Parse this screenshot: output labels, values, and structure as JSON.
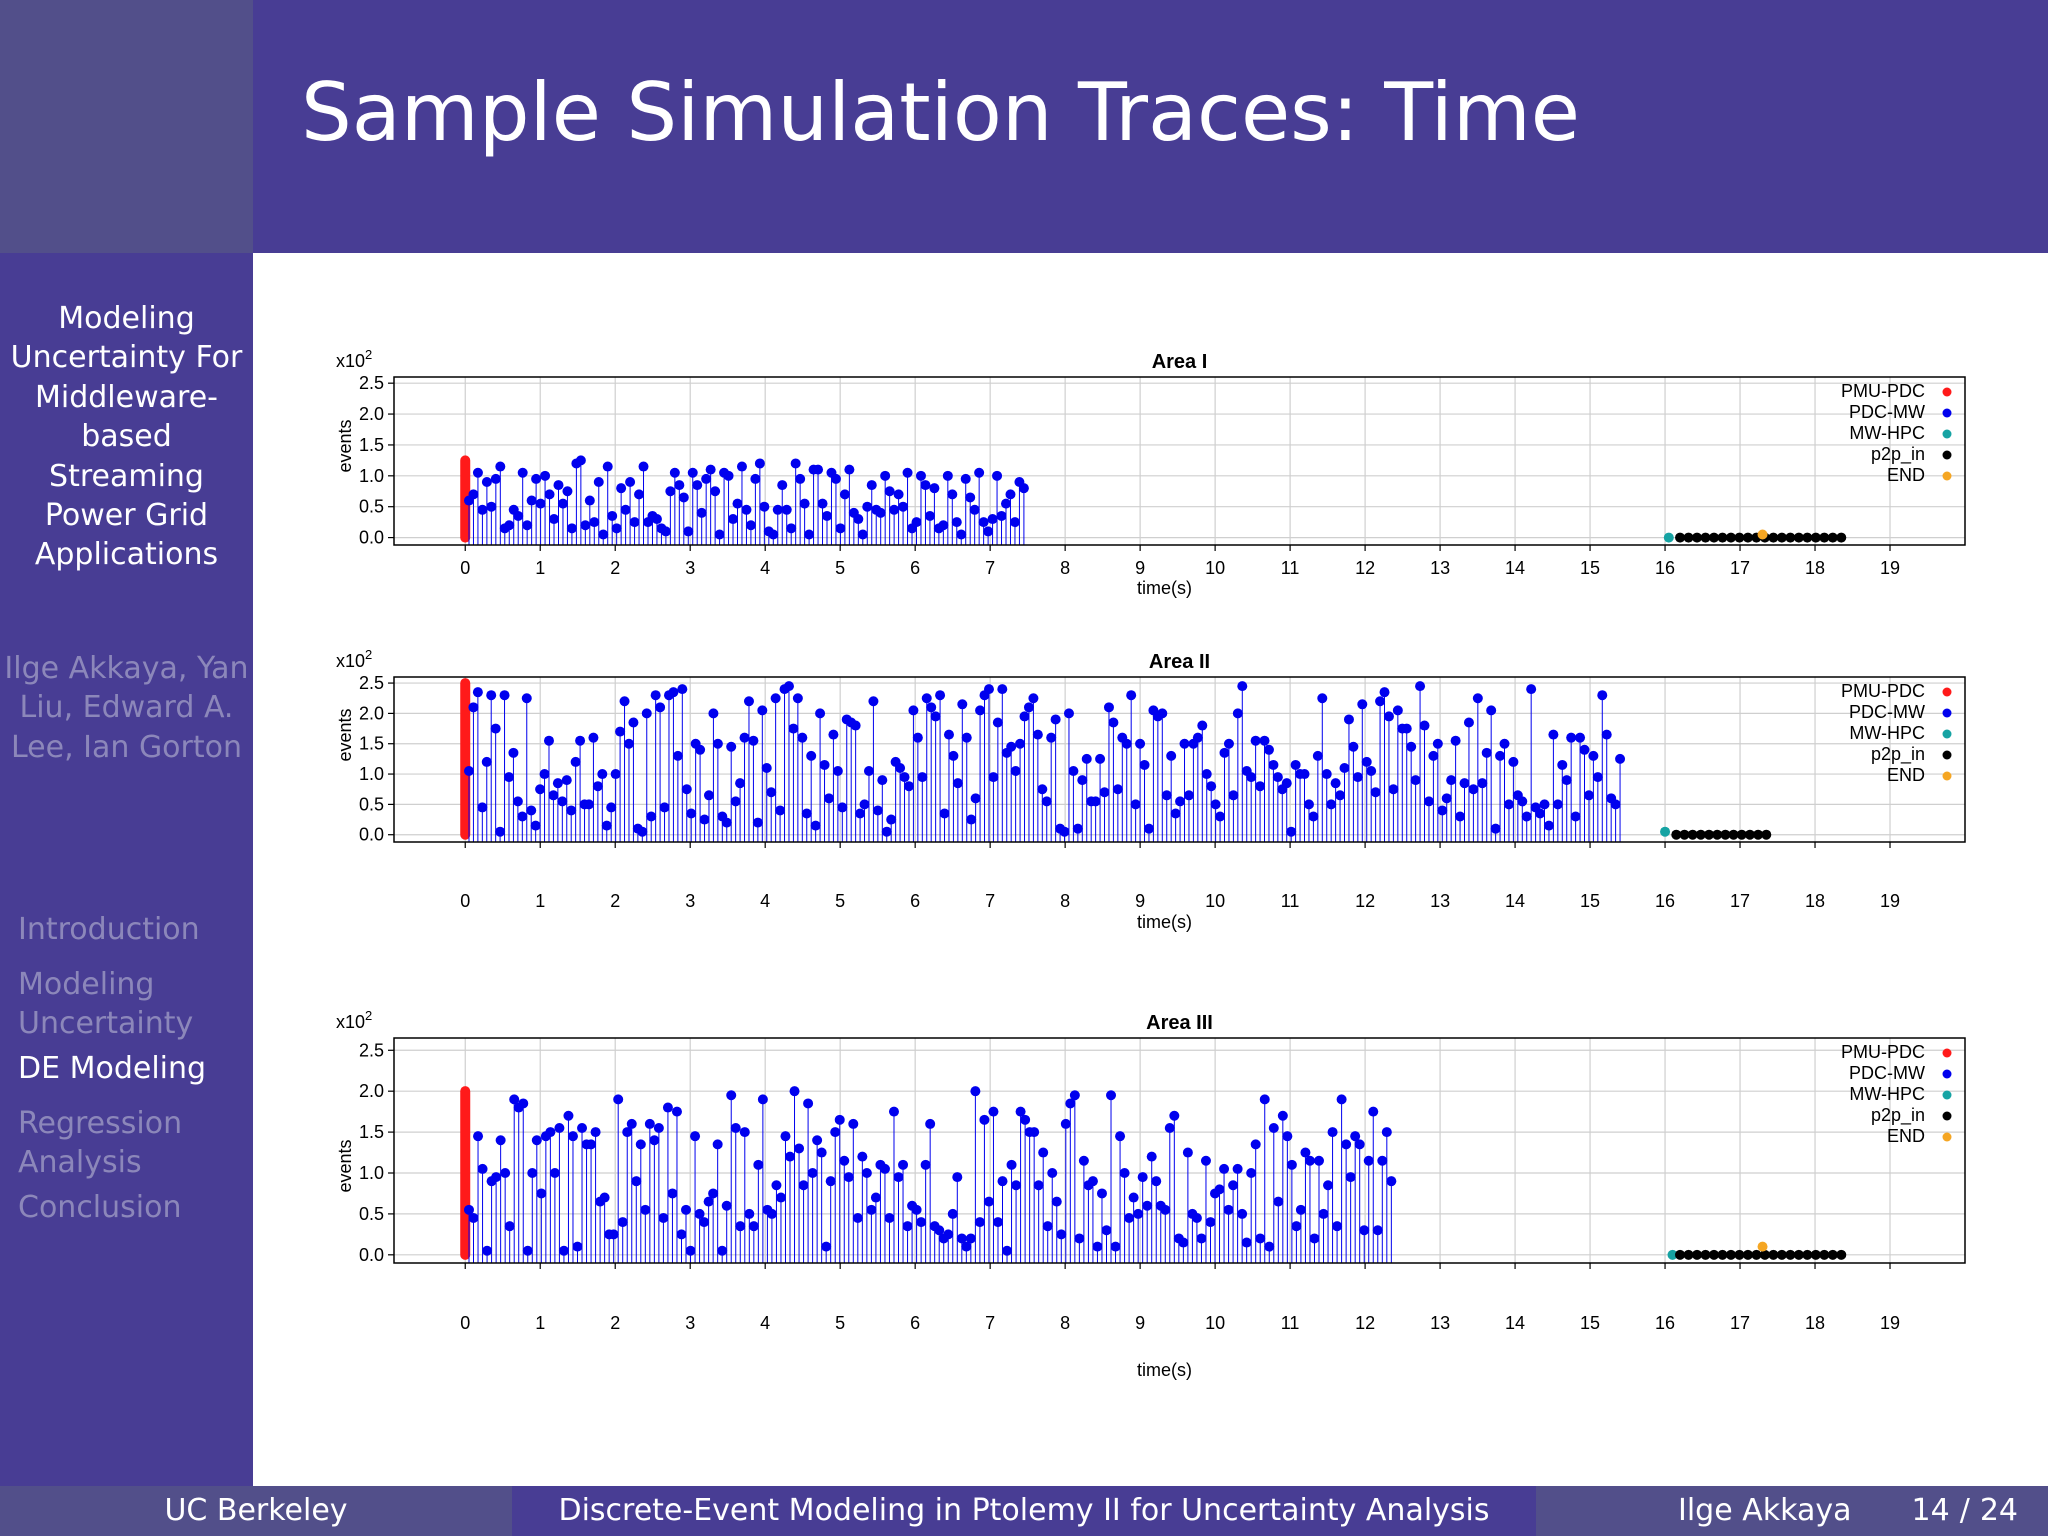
{
  "slide": {
    "title": "Sample Simulation Traces: Time"
  },
  "sidebar": {
    "talk_title": "Modeling Uncertainty For Middleware-based Streaming Power Grid Applications",
    "authors": "Ilge Akkaya, Yan Liu, Edward A. Lee, Ian Gorton",
    "nav": [
      {
        "label": "Introduction",
        "active": false
      },
      {
        "label": "Modeling Uncertainty",
        "active": false
      },
      {
        "label": "DE Modeling",
        "active": true
      },
      {
        "label": "Regression Analysis",
        "active": false
      },
      {
        "label": "Conclusion",
        "active": false
      }
    ]
  },
  "footer": {
    "institution": "UC Berkeley",
    "talk_title": "Discrete-Event Modeling in Ptolemy II for Uncertainty Analysis",
    "author": "Ilge Akkaya",
    "page_current": "14",
    "page_sep": "/",
    "page_total": "24"
  },
  "colors": {
    "header_bg": "#483d94",
    "sidebar_bg": "#483d94",
    "corner_bg": "#524f8a",
    "nav_inactive": "#8c87ba",
    "PMU-PDC": "#ff1a1a",
    "PDC-MW": "#0000ee",
    "MW-HPC": "#16a3a3",
    "p2p_in": "#000000",
    "END": "#f5a623"
  },
  "chart_data": [
    {
      "type": "scatter",
      "style": "stem",
      "title": "Area I",
      "xlabel": "time(s)",
      "ylabel": "events",
      "y_multiplier": "x10",
      "y_multiplier_exp": "2",
      "xlim": [
        -0.95,
        20
      ],
      "ylim": [
        -0.12,
        2.6
      ],
      "xticks": [
        "0",
        "1",
        "2",
        "3",
        "4",
        "5",
        "6",
        "7",
        "8",
        "9",
        "10",
        "11",
        "12",
        "13",
        "14",
        "15",
        "16",
        "17",
        "18",
        "19"
      ],
      "yticks": [
        "0.0",
        "0.5",
        "1.0",
        "1.5",
        "2.0",
        "2.5"
      ],
      "grid": true,
      "legend_position": "right",
      "legend": [
        "PMU-PDC",
        "PDC-MW",
        "MW-HPC",
        "p2p_in",
        "END"
      ],
      "series": [
        {
          "name": "PMU-PDC",
          "style": "bar",
          "x": [
            0,
            0
          ],
          "y": [
            0.0,
            1.25
          ]
        },
        {
          "name": "PDC-MW",
          "x_range": [
            0.05,
            7.45
          ],
          "count": 125,
          "y": [
            0.6,
            0.7,
            1.05,
            0.45,
            0.9,
            0.5,
            0.95,
            1.15,
            0.15,
            0.2,
            0.45,
            0.35,
            1.05,
            0.2,
            0.6,
            0.95,
            0.55,
            1.0,
            0.7,
            0.3,
            0.85,
            0.55,
            0.75,
            0.15,
            1.2,
            1.25,
            0.2,
            0.6,
            0.25,
            0.9,
            0.05,
            1.15,
            0.35,
            0.15,
            0.8,
            0.45,
            0.9,
            0.25,
            0.7,
            1.15,
            0.25,
            0.35,
            0.3,
            0.15,
            0.1,
            0.75,
            1.05,
            0.85,
            0.65,
            0.1,
            1.05,
            0.85,
            0.4,
            0.95,
            1.1,
            0.75,
            0.05,
            1.05,
            1.0,
            0.3,
            0.55,
            1.15,
            0.45,
            0.2,
            0.95,
            1.2,
            0.5,
            0.1,
            0.05,
            0.45,
            0.85,
            0.45,
            0.15,
            1.2,
            0.95,
            0.55,
            0.05,
            1.1,
            1.1,
            0.55,
            0.35,
            1.05,
            0.95,
            0.15,
            0.7,
            1.1,
            0.4,
            0.3,
            0.05,
            0.5,
            0.85,
            0.45,
            0.4,
            1.0,
            0.75,
            0.45,
            0.7,
            0.5,
            1.05,
            0.15,
            0.25,
            1.0,
            0.85,
            0.35,
            0.8,
            0.15,
            0.2,
            1.0,
            0.7,
            0.25,
            0.05,
            0.95,
            0.65,
            0.45,
            1.05,
            0.25,
            0.1,
            0.3,
            1.0,
            0.35,
            0.55,
            0.7,
            0.25,
            0.9,
            0.8
          ]
        },
        {
          "name": "MW-HPC",
          "x": [
            16.05
          ],
          "y": [
            0.0
          ]
        },
        {
          "name": "p2p_in",
          "x_range": [
            16.2,
            18.35
          ],
          "count": 20,
          "y": [
            0.0
          ]
        },
        {
          "name": "END",
          "x": [
            17.3
          ],
          "y": [
            0.05
          ]
        }
      ]
    },
    {
      "type": "scatter",
      "style": "stem",
      "title": "Area II",
      "xlabel": "time(s)",
      "ylabel": "events",
      "y_multiplier": "x10",
      "y_multiplier_exp": "2",
      "xlim": [
        -0.95,
        20
      ],
      "ylim": [
        -0.12,
        2.6
      ],
      "xticks": [
        "0",
        "1",
        "2",
        "3",
        "4",
        "5",
        "6",
        "7",
        "8",
        "9",
        "10",
        "11",
        "12",
        "13",
        "14",
        "15",
        "16",
        "17",
        "18",
        "19"
      ],
      "yticks": [
        "0.0",
        "0.5",
        "1.0",
        "1.5",
        "2.0",
        "2.5"
      ],
      "grid": true,
      "legend_position": "right",
      "legend": [
        "PMU-PDC",
        "PDC-MW",
        "MW-HPC",
        "p2p_in",
        "END"
      ],
      "series": [
        {
          "name": "PMU-PDC",
          "style": "bar",
          "x": [
            0,
            0
          ],
          "y": [
            0.0,
            2.5
          ]
        },
        {
          "name": "PDC-MW",
          "x_range": [
            0.05,
            15.4
          ],
          "count": 260,
          "y": [
            1.05,
            2.1,
            2.35,
            0.45,
            1.2,
            2.3,
            1.75,
            0.05,
            2.3,
            0.95,
            1.35,
            0.55,
            0.3,
            2.25,
            0.4,
            0.15,
            0.75,
            1.0,
            1.55,
            0.65,
            0.85,
            0.55,
            0.9,
            0.4,
            1.2,
            1.55,
            0.5,
            0.5,
            1.6,
            0.8,
            1.0,
            0.15,
            0.45,
            1.0,
            1.7,
            2.2,
            1.5,
            1.85,
            0.1,
            0.05,
            2.0,
            0.3,
            2.3,
            2.1,
            0.45,
            2.3,
            2.35,
            1.3,
            2.4,
            0.75,
            0.35,
            1.5,
            1.4,
            0.25,
            0.65,
            2.0,
            1.5,
            0.3,
            0.2,
            1.45,
            0.55,
            0.85,
            1.6,
            2.2,
            1.55,
            0.2,
            2.05,
            1.1,
            0.7,
            2.25,
            0.4,
            2.4,
            2.45,
            1.75,
            2.25,
            1.6,
            0.35,
            1.3,
            0.15,
            2.0,
            1.15,
            0.6,
            1.65,
            1.05,
            0.45,
            1.9,
            1.85,
            1.8,
            0.35,
            0.5,
            1.05,
            2.2,
            0.4,
            0.9,
            0.05,
            0.25,
            1.2,
            1.1,
            0.95,
            0.8,
            2.05,
            1.6,
            0.95,
            2.25,
            2.1,
            1.95,
            2.3,
            0.35,
            1.65,
            1.3,
            0.85,
            2.15,
            1.6,
            0.25,
            0.6,
            2.05,
            2.3,
            2.4,
            0.95,
            1.85,
            2.4,
            1.35,
            1.45,
            1.05,
            1.5,
            1.95,
            2.1,
            2.25,
            1.65,
            0.75,
            0.55,
            1.6,
            1.9,
            0.1,
            0.05,
            2.0,
            1.05,
            0.1,
            0.9,
            1.25,
            0.55,
            0.55,
            1.25,
            0.7,
            2.1,
            1.85,
            0.75,
            1.6,
            1.5,
            2.3,
            0.5,
            1.5,
            1.15,
            0.1,
            2.05,
            1.95,
            2.0,
            0.65,
            1.3,
            0.35,
            0.55,
            1.5,
            0.65,
            1.5,
            1.6,
            1.8,
            1.0,
            0.8,
            0.5,
            0.3,
            1.35,
            1.5,
            0.65,
            2.0,
            2.45,
            1.05,
            0.95,
            1.55,
            0.8,
            1.55,
            1.4,
            1.15,
            0.95,
            0.75,
            0.85,
            0.05,
            1.15,
            1.0,
            1.0,
            0.5,
            0.3,
            1.3,
            2.25,
            1.0,
            0.5,
            0.85,
            0.65,
            1.1,
            1.9,
            1.45,
            0.95,
            2.15,
            1.2,
            1.05,
            0.7,
            2.2,
            2.35,
            1.95,
            0.75,
            2.05,
            1.75,
            1.75,
            1.45,
            0.9,
            2.45,
            1.8,
            0.55,
            1.3,
            1.5,
            0.4,
            0.6,
            0.9,
            1.55,
            0.3,
            0.85,
            1.85,
            0.75,
            2.25,
            0.85,
            1.35,
            2.05,
            0.1,
            1.3,
            1.5,
            0.5,
            1.2,
            0.65,
            0.55,
            0.3,
            2.4,
            0.45,
            0.35,
            0.5,
            0.15,
            1.65,
            0.5,
            1.15,
            0.9,
            1.6,
            0.3,
            1.6,
            1.4,
            0.65,
            1.3,
            0.95,
            2.3,
            1.65,
            0.6,
            0.5,
            1.25,
            0.95,
            1.95,
            1.65,
            0.85,
            1.35,
            0.65,
            1.05,
            1.55,
            1.3,
            0.95,
            1.85,
            0.3,
            0.7,
            1.6,
            1.0,
            0.85,
            1.9,
            1.05,
            0.55,
            0.65,
            0.8,
            2.1,
            1.5,
            1.3,
            1.1,
            0.85,
            0.45,
            1.35,
            0.9,
            0.65,
            2.35,
            1.2,
            0.15,
            0.6,
            1.35,
            0.05,
            1.25,
            1.6
          ]
        },
        {
          "name": "MW-HPC",
          "x": [
            16.0
          ],
          "y": [
            0.05
          ]
        },
        {
          "name": "p2p_in",
          "x_range": [
            16.15,
            17.35
          ],
          "count": 12,
          "y": [
            0.0
          ]
        }
      ]
    },
    {
      "type": "scatter",
      "style": "stem",
      "title": "Area III",
      "xlabel": "time(s)",
      "ylabel": "events",
      "y_multiplier": "x10",
      "y_multiplier_exp": "2",
      "xlim": [
        -0.95,
        20
      ],
      "ylim": [
        -0.1,
        2.65
      ],
      "xticks": [
        "0",
        "1",
        "2",
        "3",
        "4",
        "5",
        "6",
        "7",
        "8",
        "9",
        "10",
        "11",
        "12",
        "13",
        "14",
        "15",
        "16",
        "17",
        "18",
        "19"
      ],
      "yticks": [
        "0.0",
        "0.5",
        "1.0",
        "1.5",
        "2.0",
        "2.5"
      ],
      "grid": true,
      "legend_position": "right",
      "legend": [
        "PMU-PDC",
        "PDC-MW",
        "MW-HPC",
        "p2p_in",
        "END"
      ],
      "series": [
        {
          "name": "PMU-PDC",
          "style": "bar",
          "x": [
            0,
            0
          ],
          "y": [
            0.0,
            2.0
          ]
        },
        {
          "name": "PDC-MW",
          "x_range": [
            0.05,
            12.35
          ],
          "count": 205,
          "y": [
            0.55,
            0.45,
            1.45,
            1.05,
            0.05,
            0.9,
            0.95,
            1.4,
            1.0,
            0.35,
            1.9,
            1.8,
            1.85,
            0.05,
            1.0,
            1.4,
            0.75,
            1.45,
            1.5,
            1.0,
            1.55,
            0.05,
            1.7,
            1.45,
            0.1,
            1.55,
            1.35,
            1.35,
            1.5,
            0.65,
            0.7,
            0.25,
            0.25,
            1.9,
            0.4,
            1.5,
            1.6,
            0.9,
            1.35,
            0.55,
            1.6,
            1.4,
            1.55,
            0.45,
            1.8,
            0.75,
            1.75,
            0.25,
            0.55,
            0.05,
            1.45,
            0.5,
            0.4,
            0.65,
            0.75,
            1.35,
            0.05,
            0.6,
            1.95,
            1.55,
            0.35,
            1.5,
            0.5,
            0.35,
            1.1,
            1.9,
            0.55,
            0.5,
            0.85,
            0.7,
            1.45,
            1.2,
            2.0,
            1.3,
            0.85,
            1.85,
            1.0,
            1.4,
            1.25,
            0.1,
            0.9,
            1.5,
            1.65,
            1.15,
            0.95,
            1.6,
            0.45,
            1.2,
            1.0,
            0.55,
            0.7,
            1.1,
            1.05,
            0.45,
            1.75,
            0.95,
            1.1,
            0.35,
            0.6,
            0.55,
            0.4,
            1.1,
            1.6,
            0.35,
            0.3,
            0.2,
            0.25,
            0.5,
            0.95,
            0.2,
            0.1,
            0.2,
            2.0,
            0.4,
            1.65,
            0.65,
            1.75,
            0.4,
            0.9,
            0.05,
            1.1,
            0.85,
            1.75,
            1.65,
            1.5,
            1.5,
            0.85,
            1.25,
            0.35,
            1.0,
            0.65,
            0.25,
            1.6,
            1.85,
            1.95,
            0.2,
            1.15,
            0.85,
            0.9,
            0.1,
            0.75,
            0.3,
            1.95,
            0.1,
            1.45,
            1.0,
            0.45,
            0.7,
            0.5,
            0.95,
            0.6,
            1.2,
            0.9,
            0.6,
            0.55,
            1.55,
            1.7,
            0.2,
            0.15,
            1.25,
            0.5,
            0.45,
            0.2,
            1.15,
            0.4,
            0.75,
            0.8,
            1.05,
            0.55,
            0.85,
            1.05,
            0.5,
            0.15,
            1.0,
            1.35,
            0.2,
            1.9,
            0.1,
            1.55,
            0.65,
            1.7,
            1.45,
            1.1,
            0.35,
            0.55,
            1.25,
            1.15,
            0.2,
            1.15,
            0.5,
            0.85,
            1.5,
            0.35,
            1.9,
            1.35,
            0.95,
            1.45,
            1.35,
            0.3,
            1.15,
            1.75,
            0.3,
            1.15,
            1.5,
            0.9,
            0.5,
            1.05,
            0.8,
            1.6,
            1.35,
            0.8,
            1.25,
            0.5,
            0.8
          ]
        },
        {
          "name": "MW-HPC",
          "x": [
            16.1
          ],
          "y": [
            0.0
          ]
        },
        {
          "name": "p2p_in",
          "x_range": [
            16.2,
            18.35
          ],
          "count": 20,
          "y": [
            0.0
          ]
        },
        {
          "name": "END",
          "x": [
            17.3
          ],
          "y": [
            0.1
          ]
        }
      ]
    }
  ]
}
